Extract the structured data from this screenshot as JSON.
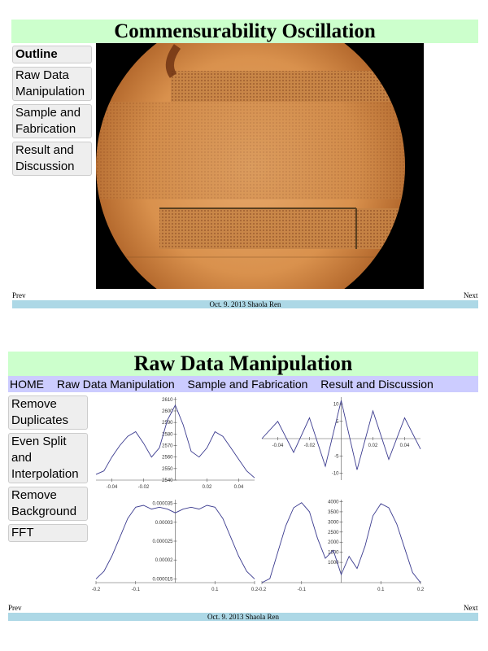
{
  "slide1": {
    "title": "Commensurability Oscillation",
    "sidebar": [
      "Outline",
      "Raw Data Manipulation",
      "Sample and Fabrication",
      "Result and Discussion"
    ],
    "image_label": "microscope-photo",
    "prev": "Prev",
    "next": "Next",
    "footer": "Oct. 9. 2013 Shaola Ren"
  },
  "slide2": {
    "title": "Raw Data Manipulation",
    "nav": [
      "HOME",
      "Raw Data Manipulation",
      "Sample and Fabrication",
      "Result and Discussion"
    ],
    "sidebar": [
      "Remove Duplicates",
      "Even Split and Interpolation",
      "Remove Background",
      "FFT"
    ],
    "prev": "Prev",
    "next": "Next",
    "footer": "Oct. 9. 2013 Shaola Ren"
  },
  "colors": {
    "title_bg": "#ccffcc",
    "nav_bg": "#ccccff",
    "footer_bg": "#add8e6",
    "plot_line": "#3b3b8f"
  },
  "chart_data": [
    {
      "type": "line",
      "series": [
        {
          "values": [
            [
              -0.05,
              2545
            ],
            [
              -0.045,
              2548
            ],
            [
              -0.04,
              2560
            ],
            [
              -0.035,
              2570
            ],
            [
              -0.03,
              2578
            ],
            [
              -0.025,
              2582
            ],
            [
              -0.02,
              2572
            ],
            [
              -0.015,
              2560
            ],
            [
              -0.01,
              2568
            ],
            [
              -0.005,
              2592
            ],
            [
              0,
              2605
            ],
            [
              0.005,
              2588
            ],
            [
              0.01,
              2565
            ],
            [
              0.015,
              2560
            ],
            [
              0.02,
              2568
            ],
            [
              0.025,
              2582
            ],
            [
              0.03,
              2578
            ],
            [
              0.035,
              2568
            ],
            [
              0.04,
              2558
            ],
            [
              0.045,
              2548
            ],
            [
              0.05,
              2542
            ]
          ]
        }
      ],
      "xlim": [
        -0.05,
        0.05
      ],
      "ylim": [
        2540,
        2612
      ],
      "x_ticks": [
        "-0.04",
        "-0.02",
        "0.02",
        "0.04"
      ],
      "y_ticks": [
        "2540",
        "2550",
        "2560",
        "2570",
        "2580",
        "2590",
        "2600",
        "2610"
      ]
    },
    {
      "type": "line",
      "series": [
        {
          "values": [
            [
              -0.05,
              0
            ],
            [
              -0.04,
              5
            ],
            [
              -0.03,
              -4
            ],
            [
              -0.02,
              6
            ],
            [
              -0.01,
              -8
            ],
            [
              0,
              11
            ],
            [
              0.01,
              -9
            ],
            [
              0.02,
              8
            ],
            [
              0.03,
              -6
            ],
            [
              0.04,
              6
            ],
            [
              0.05,
              -3
            ]
          ]
        }
      ],
      "xlim": [
        -0.05,
        0.05
      ],
      "ylim": [
        -12,
        12
      ],
      "x_ticks": [
        "-0.04",
        "-0.02",
        "0.02",
        "0.04"
      ],
      "y_ticks": [
        "-10",
        "-5",
        "5",
        "10"
      ]
    },
    {
      "type": "line",
      "series": [
        {
          "values": [
            [
              -0.2,
              1.5e-05
            ],
            [
              -0.18,
              1.7e-05
            ],
            [
              -0.16,
              2.1e-05
            ],
            [
              -0.14,
              2.6e-05
            ],
            [
              -0.12,
              3.1e-05
            ],
            [
              -0.1,
              3.4e-05
            ],
            [
              -0.08,
              3.45e-05
            ],
            [
              -0.06,
              3.35e-05
            ],
            [
              -0.04,
              3.4e-05
            ],
            [
              -0.02,
              3.35e-05
            ],
            [
              0,
              3.25e-05
            ],
            [
              0.02,
              3.35e-05
            ],
            [
              0.04,
              3.4e-05
            ],
            [
              0.06,
              3.35e-05
            ],
            [
              0.08,
              3.45e-05
            ],
            [
              0.1,
              3.4e-05
            ],
            [
              0.12,
              3.1e-05
            ],
            [
              0.14,
              2.6e-05
            ],
            [
              0.16,
              2.1e-05
            ],
            [
              0.18,
              1.7e-05
            ],
            [
              0.2,
              1.5e-05
            ]
          ]
        }
      ],
      "xlim": [
        -0.2,
        0.2
      ],
      "ylim": [
        1.4e-05,
        3.6e-05
      ],
      "x_ticks": [
        "-0.2",
        "-0.1",
        "0.1",
        "0.2"
      ],
      "y_ticks": [
        "0.000015",
        "0.00002",
        "0.000025",
        "0.00003",
        "0.000035"
      ]
    },
    {
      "type": "line",
      "series": [
        {
          "values": [
            [
              -0.2,
              0
            ],
            [
              -0.18,
              200
            ],
            [
              -0.16,
              1500
            ],
            [
              -0.14,
              2800
            ],
            [
              -0.12,
              3700
            ],
            [
              -0.1,
              3950
            ],
            [
              -0.08,
              3500
            ],
            [
              -0.06,
              2200
            ],
            [
              -0.04,
              1200
            ],
            [
              -0.02,
              1600
            ],
            [
              0,
              400
            ],
            [
              0.02,
              1300
            ],
            [
              0.04,
              700
            ],
            [
              0.06,
              1800
            ],
            [
              0.08,
              3300
            ],
            [
              0.1,
              3900
            ],
            [
              0.12,
              3700
            ],
            [
              0.14,
              2900
            ],
            [
              0.16,
              1700
            ],
            [
              0.18,
              500
            ],
            [
              0.2,
              0
            ]
          ]
        }
      ],
      "xlim": [
        -0.2,
        0.2
      ],
      "ylim": [
        0,
        4100
      ],
      "x_ticks": [
        "-0.2",
        "-0.1",
        "0.1",
        "0.2"
      ],
      "y_ticks": [
        "1000",
        "1500",
        "2000",
        "2500",
        "3000",
        "3500",
        "4000"
      ]
    }
  ]
}
